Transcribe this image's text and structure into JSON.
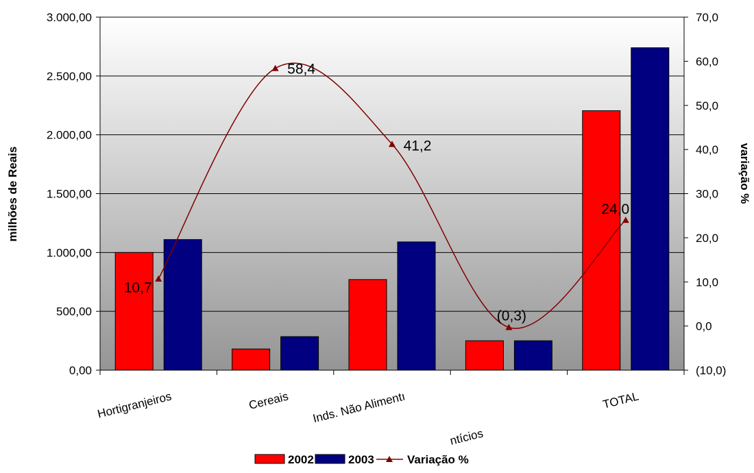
{
  "chart_data": {
    "type": "bar",
    "categories": [
      "Hortigranjeiros",
      "Cereais",
      "Inds. Não Alimentícios",
      "",
      "TOTAL"
    ],
    "category_display": [
      "Hortigranjeiros",
      "Cereais",
      "Inds. Não Alimentı",
      "",
      "TOTAL"
    ],
    "category_fragment": "ntícios",
    "series": [
      {
        "name": "2002",
        "color": "#ff0000",
        "axis": "left",
        "values": [
          1000,
          180,
          770,
          250,
          2205
        ]
      },
      {
        "name": "2003",
        "color": "#000080",
        "axis": "left",
        "values": [
          1110,
          285,
          1090,
          250,
          2740
        ]
      }
    ],
    "line_series": {
      "name": "Variação   %",
      "color": "#800000",
      "axis": "right",
      "values": [
        10.7,
        58.4,
        41.2,
        -0.3,
        24.0
      ],
      "labels": [
        "10,7",
        "58,4",
        "41,2",
        "(0,3)",
        "24,0"
      ],
      "label_colors": [
        "#000000",
        "#000000",
        "#000000",
        "#ff0000",
        "#000000"
      ]
    },
    "ylabel": "milhões de Reais",
    "y2label": "variação %",
    "ylim": [
      0,
      3000
    ],
    "y2lim": [
      -10,
      70
    ],
    "yticks": [
      "0,00",
      "500,00",
      "1.000,00",
      "1.500,00",
      "2.000,00",
      "2.500,00",
      "3.000,00"
    ],
    "y2ticks": [
      "(10,0)",
      "0,0",
      "10,0",
      "20,0",
      "30,0",
      "40,0",
      "50,0",
      "60,0",
      "70,0"
    ],
    "y2tick_colors": [
      "#ff0000",
      "#000000",
      "#000000",
      "#000000",
      "#000000",
      "#000000",
      "#000000",
      "#000000",
      "#000000"
    ],
    "grid": true,
    "legend_position": "bottom",
    "plot_background": "gradient white to gray"
  }
}
